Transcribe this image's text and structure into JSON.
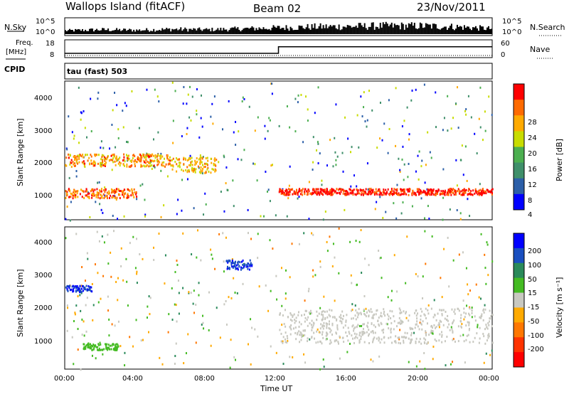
{
  "header": {
    "station": "Wallops Island (fitACF)",
    "beam": "Beam 02",
    "date": "23/Nov/2011"
  },
  "nsky_panel": {
    "left_label": "N.Sky",
    "left_ticks": [
      "10^5",
      "10^0"
    ],
    "right_label": "N.Search",
    "right_ticks": [
      "10^5",
      "10^0"
    ]
  },
  "freq_panel": {
    "left_label_1": "Freq.",
    "left_label_2": "[MHz]",
    "left_ticks": [
      "18",
      "8"
    ],
    "right_label": "Nave",
    "right_ticks": [
      "60",
      "0"
    ],
    "cpid_label": "CPID",
    "cpid_value": "tau (fast) 503"
  },
  "colorbars": {
    "power": {
      "title": "Power [dB]",
      "ticks": [
        "28",
        "24",
        "20",
        "16",
        "12",
        "8",
        "4"
      ],
      "colors": [
        "#ff0000",
        "#ff6a00",
        "#ffaa00",
        "#c8dc00",
        "#4caf50",
        "#3f8f6a",
        "#2c5fa8",
        "#0000ff"
      ]
    },
    "velocity": {
      "title": "Velocity [m s⁻¹]",
      "ticks": [
        "200",
        "100",
        "50",
        "15",
        "-15",
        "-50",
        "-100",
        "-200"
      ],
      "colors": [
        "#0000ff",
        "#1a4fc0",
        "#2a8a5a",
        "#44bb22",
        "#c8c8c0",
        "#ffaa00",
        "#ff7700",
        "#ff3300",
        "#ff0000"
      ]
    }
  },
  "axes": {
    "xlabel": "Time UT",
    "ylabel": "Slant Range [km]",
    "x_ticks": [
      "00:00",
      "04:00",
      "08:00",
      "12:00",
      "16:00",
      "20:00",
      "00:00"
    ],
    "y_ticks": [
      "1000",
      "2000",
      "3000",
      "4000"
    ]
  },
  "chart_data": [
    {
      "type": "line",
      "name": "N.Sky / N.Search",
      "x_hours": [
        0,
        2,
        4,
        6,
        8,
        10,
        12,
        14,
        16,
        18,
        20,
        22,
        24
      ],
      "y_log10": [
        0.3,
        0.4,
        0.35,
        0.45,
        0.4,
        0.5,
        0.6,
        0.7,
        0.75,
        0.8,
        0.8,
        0.7,
        0.5
      ]
    },
    {
      "type": "line",
      "name": "Freq.",
      "x_hours": [
        0,
        12,
        12,
        24
      ],
      "y": [
        10.3,
        10.3,
        14.5,
        14.5
      ],
      "ylim": [
        8,
        18
      ]
    },
    {
      "type": "heatmap",
      "title": "Power",
      "xlim_hours": [
        0,
        24
      ],
      "ylim_km": [
        180,
        4600
      ],
      "zlim_db": [
        0,
        30
      ],
      "features": [
        {
          "t_start": 0.0,
          "t_end": 4.0,
          "range_start": 900,
          "range_end": 1200,
          "power_db": 24
        },
        {
          "t_start": 0.0,
          "t_end": 6.0,
          "range_start": 1900,
          "range_end": 2300,
          "power_db": 22
        },
        {
          "t_start": 6.0,
          "t_end": 8.5,
          "range_start": 1700,
          "range_end": 2200,
          "power_db": 20
        },
        {
          "t_start": 12.0,
          "t_end": 24.0,
          "range_start": 1000,
          "range_end": 1200,
          "power_db": 28
        }
      ]
    },
    {
      "type": "heatmap",
      "title": "Velocity",
      "xlim_hours": [
        0,
        24
      ],
      "ylim_km": [
        180,
        4600
      ],
      "zlim_ms": [
        -200,
        200
      ],
      "features": [
        {
          "t_start": 0.0,
          "t_end": 1.5,
          "range_start": 2600,
          "range_end": 2800,
          "velocity_ms": 150
        },
        {
          "t_start": 1.0,
          "t_end": 3.0,
          "range_start": 800,
          "range_end": 1000,
          "velocity_ms": 40
        },
        {
          "t_start": 9.0,
          "t_end": 10.5,
          "range_start": 3300,
          "range_end": 3600,
          "velocity_ms": 150
        },
        {
          "t_start": 12.0,
          "t_end": 24.0,
          "range_start": 1000,
          "range_end": 2100,
          "velocity_ms": 0
        }
      ]
    }
  ]
}
